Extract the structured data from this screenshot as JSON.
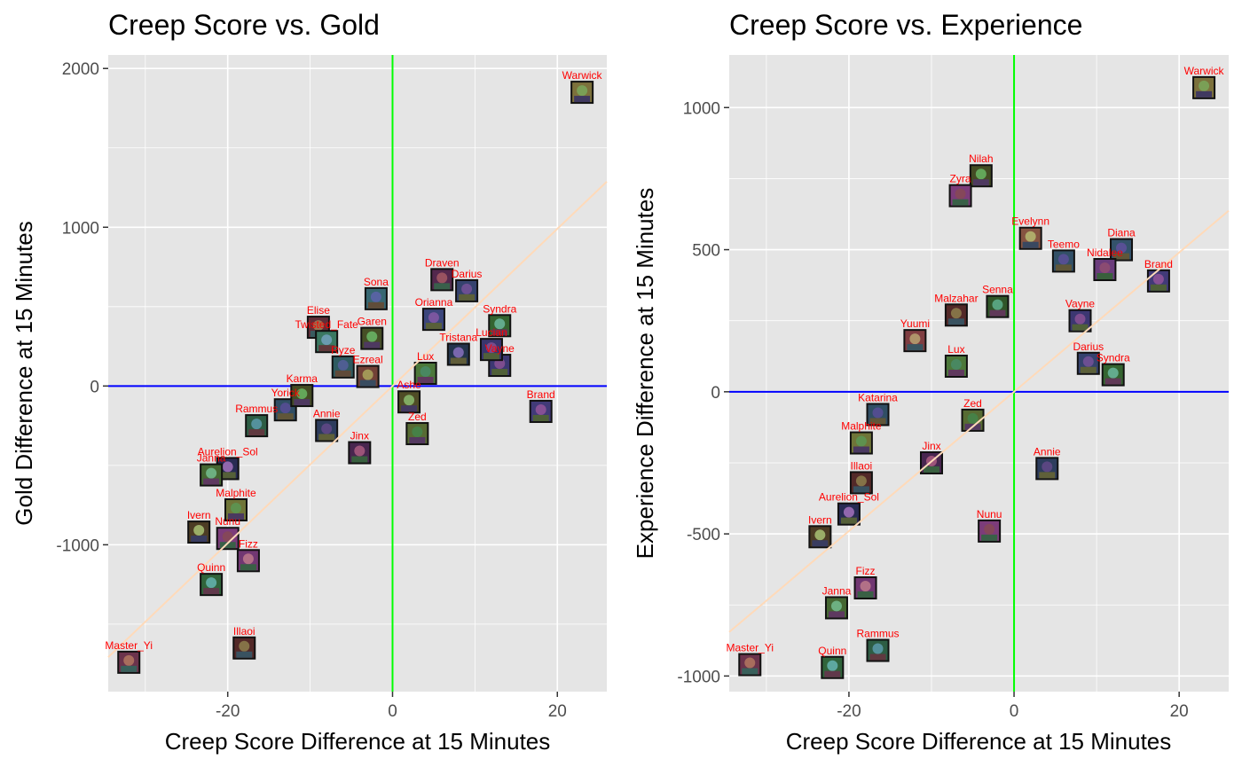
{
  "colors": {
    "panel_bg": "#E5E5E5",
    "grid": "#FFFFFF",
    "hline": "#0000FF",
    "vline": "#00FF00",
    "trend": "#FFDAB9",
    "label": "#FF0000",
    "marker_frame": "#111111"
  },
  "chart_data": [
    {
      "type": "scatter",
      "title": "Creep Score vs. Gold",
      "xlabel": "Creep Score Difference at 15 Minutes",
      "ylabel": "Gold Difference at 15 Minutes",
      "xlim": [
        -34.5,
        26
      ],
      "ylim": [
        -1925,
        2085
      ],
      "xticks": [
        -20,
        0,
        20
      ],
      "xtick_labels": [
        "-20",
        "0",
        "20"
      ],
      "yticks": [
        -1000,
        0,
        1000,
        2000
      ],
      "ytick_labels": [
        "-1000",
        "0",
        "1000",
        "2000"
      ],
      "hline": 0,
      "vline": 0,
      "trend": {
        "slope": 49.5,
        "intercept": 0
      },
      "points": [
        {
          "label": "Warwick",
          "x": 23,
          "y": 1850
        },
        {
          "label": "Master_Yi",
          "x": -32,
          "y": -1740
        },
        {
          "label": "Illaoi",
          "x": -18,
          "y": -1650
        },
        {
          "label": "Quinn",
          "x": -22,
          "y": -1250
        },
        {
          "label": "Fizz",
          "x": -17.5,
          "y": -1100
        },
        {
          "label": "Ivern",
          "x": -23.5,
          "y": -920
        },
        {
          "label": "Nunu",
          "x": -20,
          "y": -960
        },
        {
          "label": "Malphite",
          "x": -19,
          "y": -780
        },
        {
          "label": "Aurelion_Sol",
          "x": -20,
          "y": -520
        },
        {
          "label": "Janna",
          "x": -22,
          "y": -560
        },
        {
          "label": "Rammus",
          "x": -16.5,
          "y": -250
        },
        {
          "label": "Yorick",
          "x": -13,
          "y": -150
        },
        {
          "label": "Karma",
          "x": -11,
          "y": -60
        },
        {
          "label": "Elise",
          "x": -9,
          "y": 370
        },
        {
          "label": "Twisted_Fate",
          "x": -8,
          "y": 280
        },
        {
          "label": "Sona",
          "x": -2,
          "y": 550
        },
        {
          "label": "Draven",
          "x": 6,
          "y": 670
        },
        {
          "label": "Darius",
          "x": 9,
          "y": 600
        },
        {
          "label": "Syndra",
          "x": 13,
          "y": 380
        },
        {
          "label": "Brand",
          "x": 18,
          "y": -160
        },
        {
          "label": "Vayne",
          "x": 13,
          "y": 130
        },
        {
          "label": "Lucian",
          "x": 12,
          "y": 230
        },
        {
          "label": "Orianna",
          "x": 5,
          "y": 420
        },
        {
          "label": "Garen",
          "x": -2.5,
          "y": 300
        },
        {
          "label": "Zed",
          "x": 3,
          "y": -300
        },
        {
          "label": "Jinx",
          "x": -4,
          "y": -420
        },
        {
          "label": "Annie",
          "x": -8,
          "y": -280
        },
        {
          "label": "Lux",
          "x": 4,
          "y": 80
        },
        {
          "label": "Ryze",
          "x": -6,
          "y": 120
        },
        {
          "label": "Tristana",
          "x": 8,
          "y": 200
        },
        {
          "label": "Ashe",
          "x": 2,
          "y": -100
        },
        {
          "label": "Ezreal",
          "x": -3,
          "y": 60
        }
      ]
    },
    {
      "type": "scatter",
      "title": "Creep Score vs. Experience",
      "xlabel": "Creep Score Difference at 15 Minutes",
      "ylabel": "Experience Difference at 15 Minutes",
      "xlim": [
        -34.5,
        26
      ],
      "ylim": [
        -1055,
        1185
      ],
      "xticks": [
        -20,
        0,
        20
      ],
      "xtick_labels": [
        "-20",
        "0",
        "20"
      ],
      "yticks": [
        -1000,
        -500,
        0,
        500,
        1000
      ],
      "ytick_labels": [
        "-1000",
        "-500",
        "0",
        "500",
        "1000"
      ],
      "hline": 0,
      "vline": 0,
      "trend": {
        "slope": 24.5,
        "intercept": 0
      },
      "points": [
        {
          "label": "Warwick",
          "x": 23,
          "y": 1070
        },
        {
          "label": "Nilah",
          "x": -4,
          "y": 760
        },
        {
          "label": "Zyra",
          "x": -6.5,
          "y": 690
        },
        {
          "label": "Evelynn",
          "x": 2,
          "y": 540
        },
        {
          "label": "Diana",
          "x": 13,
          "y": 500
        },
        {
          "label": "Brand",
          "x": 17.5,
          "y": 390
        },
        {
          "label": "Teemo",
          "x": 6,
          "y": 460
        },
        {
          "label": "Nidalee",
          "x": 11,
          "y": 430
        },
        {
          "label": "Malzahar",
          "x": -7,
          "y": 270
        },
        {
          "label": "Senna",
          "x": -2,
          "y": 300
        },
        {
          "label": "Yuumi",
          "x": -12,
          "y": 180
        },
        {
          "label": "Katarina",
          "x": -16.5,
          "y": -80
        },
        {
          "label": "Malphite",
          "x": -18.5,
          "y": -180
        },
        {
          "label": "Illaoi",
          "x": -18.5,
          "y": -320
        },
        {
          "label": "Aurelion_Sol",
          "x": -20,
          "y": -430
        },
        {
          "label": "Ivern",
          "x": -23.5,
          "y": -510
        },
        {
          "label": "Nunu",
          "x": -3,
          "y": -490
        },
        {
          "label": "Annie",
          "x": 4,
          "y": -270
        },
        {
          "label": "Fizz",
          "x": -18,
          "y": -690
        },
        {
          "label": "Janna",
          "x": -21.5,
          "y": -760
        },
        {
          "label": "Rammus",
          "x": -16.5,
          "y": -910
        },
        {
          "label": "Master_Yi",
          "x": -32,
          "y": -960
        },
        {
          "label": "Quinn",
          "x": -22,
          "y": -970
        },
        {
          "label": "Lux",
          "x": -7,
          "y": 90
        },
        {
          "label": "Darius",
          "x": 9,
          "y": 100
        },
        {
          "label": "Syndra",
          "x": 12,
          "y": 60
        },
        {
          "label": "Zed",
          "x": -5,
          "y": -100
        },
        {
          "label": "Jinx",
          "x": -10,
          "y": -250
        },
        {
          "label": "Vayne",
          "x": 8,
          "y": 250
        }
      ]
    }
  ]
}
